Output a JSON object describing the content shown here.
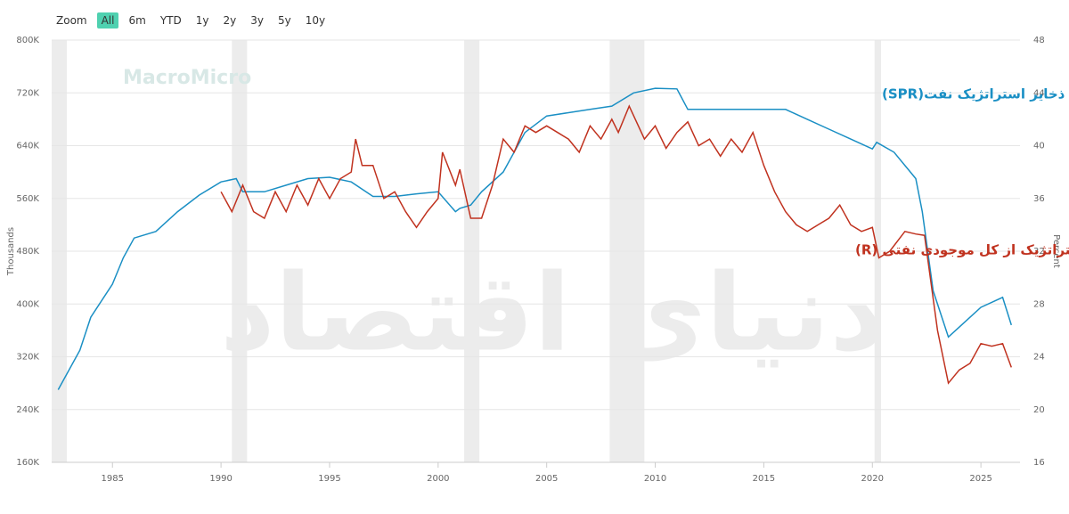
{
  "chart_data": {
    "type": "line",
    "zoom": {
      "label": "Zoom",
      "buttons": [
        "All",
        "6m",
        "YTD",
        "1y",
        "2y",
        "3y",
        "5y",
        "10y"
      ],
      "active": 0,
      "active_color": "#4fd1b0"
    },
    "watermarks": [
      "MacroMicro",
      "دنیای اقتصاد"
    ],
    "y_label": "Thousands",
    "y2_label": "Percent",
    "xlim": [
      1982.2,
      2026.8
    ],
    "xticks": [
      1985,
      1990,
      1995,
      2000,
      2005,
      2010,
      2015,
      2020,
      2025
    ],
    "ylim": [
      160000,
      800000
    ],
    "yticks": [
      {
        "value": 160000,
        "label": "160K"
      },
      {
        "value": 240000,
        "label": "240K"
      },
      {
        "value": 320000,
        "label": "320K"
      },
      {
        "value": 400000,
        "label": "400K"
      },
      {
        "value": 480000,
        "label": "480K"
      },
      {
        "value": 560000,
        "label": "560K"
      },
      {
        "value": 640000,
        "label": "640K"
      },
      {
        "value": 720000,
        "label": "720K"
      },
      {
        "value": 800000,
        "label": "800K"
      }
    ],
    "y2lim": [
      16,
      48
    ],
    "y2ticks": [
      16,
      20,
      24,
      28,
      32,
      36,
      40,
      44,
      48
    ],
    "grid": true,
    "bands": [
      [
        1981.5,
        1982.9
      ],
      [
        1990.5,
        1991.2
      ],
      [
        2001.2,
        2001.9
      ],
      [
        2007.9,
        2009.5
      ],
      [
        2020.1,
        2020.4
      ]
    ],
    "band_color": "#ececec",
    "series": [
      {
        "name": "ذخایر استراتژیک نفت(SPR)",
        "color": "#1a8fc4",
        "x": [
          1982.5,
          1983.5,
          1984,
          1985,
          1985.5,
          1986,
          1987,
          1988,
          1989,
          1990,
          1990.7,
          1991,
          1992,
          1993,
          1994,
          1995,
          1996,
          1997,
          1998,
          1999,
          2000,
          2000.8,
          2001,
          2001.5,
          2002,
          2003,
          2004,
          2005,
          2006,
          2007,
          2008,
          2009,
          2010,
          2011,
          2011.5,
          2013,
          2016,
          2017,
          2018,
          2019,
          2020,
          2020.2,
          2021,
          2022,
          2022.3,
          2022.8,
          2023.5,
          2024,
          2025,
          2026,
          2026.4
        ],
        "values": [
          270000,
          330000,
          380000,
          430000,
          470000,
          500000,
          510000,
          540000,
          565000,
          585000,
          590000,
          570000,
          570000,
          580000,
          590000,
          592000,
          585000,
          563000,
          563000,
          567000,
          570000,
          540000,
          545000,
          550000,
          570000,
          600000,
          660000,
          685000,
          690000,
          695000,
          700000,
          720000,
          727000,
          726000,
          695000,
          695000,
          695000,
          680000,
          665000,
          650000,
          635000,
          645000,
          630000,
          590000,
          540000,
          420000,
          350000,
          365000,
          395000,
          410000,
          368000
        ]
      },
      {
        "name": "سهم ذخایر استراتژیک از کل موجودی نفتی (R)",
        "color": "#c0321f",
        "axis": "y2",
        "x": [
          1990,
          1990.5,
          1991,
          1991.5,
          1992,
          1992.5,
          1993,
          1993.5,
          1994,
          1994.5,
          1995,
          1995.5,
          1996,
          1996.2,
          1996.5,
          1997,
          1997.5,
          1998,
          1998.5,
          1999,
          1999.5,
          2000,
          2000.2,
          2000.8,
          2001,
          2001.5,
          2002,
          2002.5,
          2003,
          2003.5,
          2004,
          2004.5,
          2005,
          2005.5,
          2006,
          2006.5,
          2007,
          2007.5,
          2008,
          2008.3,
          2008.8,
          2009.5,
          2010,
          2010.5,
          2011,
          2011.5,
          2012,
          2012.5,
          2013,
          2013.5,
          2014,
          2014.5,
          2015,
          2015.5,
          2016,
          2016.5,
          2017,
          2017.5,
          2018,
          2018.5,
          2019,
          2019.5,
          2020,
          2020.3,
          2020.8,
          2021.5,
          2022,
          2022.4,
          2023,
          2023.5,
          2024,
          2024.5,
          2025,
          2025.5,
          2026,
          2026.4
        ],
        "values": [
          36.5,
          35,
          37,
          35,
          34.5,
          36.5,
          35,
          37,
          35.5,
          37.5,
          36,
          37.5,
          38,
          40.5,
          38.5,
          38.5,
          36,
          36.5,
          35,
          33.8,
          35,
          36,
          39.5,
          37,
          38.2,
          34.5,
          34.5,
          37,
          40.5,
          39.5,
          41.5,
          41,
          41.5,
          41,
          40.5,
          39.5,
          41.5,
          40.5,
          42,
          41,
          43,
          40.5,
          41.5,
          39.8,
          41,
          41.8,
          40,
          40.5,
          39.2,
          40.5,
          39.5,
          41,
          38.5,
          36.5,
          35,
          34,
          33.5,
          34,
          34.5,
          35.5,
          34,
          33.5,
          33.8,
          31.5,
          32,
          33.5,
          33.3,
          33.2,
          26,
          22,
          23,
          23.5,
          25,
          24.8,
          25,
          23.2
        ]
      }
    ]
  }
}
